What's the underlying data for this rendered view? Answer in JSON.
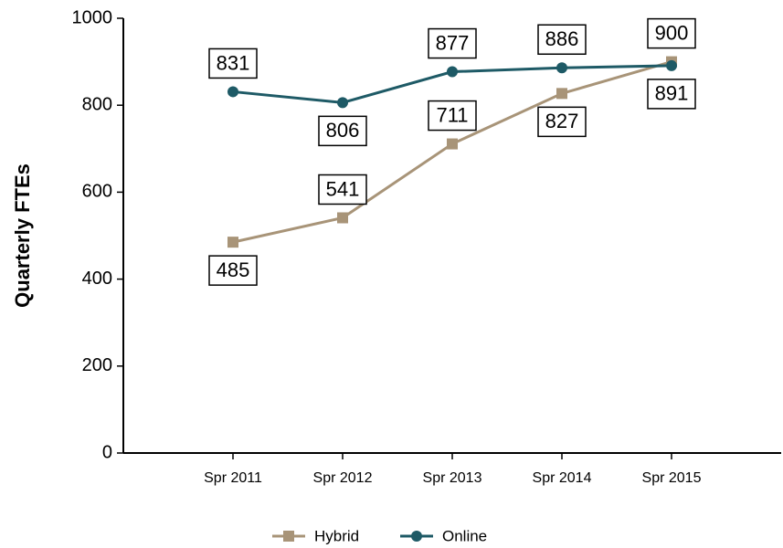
{
  "chart_data": {
    "type": "line",
    "y_label": "Quarterly FTEs",
    "categories": [
      "Spr 2011",
      "Spr 2012",
      "Spr 2013",
      "Spr 2014",
      "Spr 2015"
    ],
    "series": [
      {
        "name": "Hybrid",
        "color": "#a89478",
        "marker": "square",
        "values": [
          485,
          541,
          711,
          827,
          900
        ]
      },
      {
        "name": "Online",
        "color": "#1e5a66",
        "marker": "circle",
        "values": [
          831,
          806,
          877,
          886,
          891
        ]
      }
    ],
    "ylim": [
      0,
      1000
    ],
    "yticks": [
      0,
      200,
      400,
      600,
      800,
      1000
    ],
    "legend": "bottom"
  }
}
